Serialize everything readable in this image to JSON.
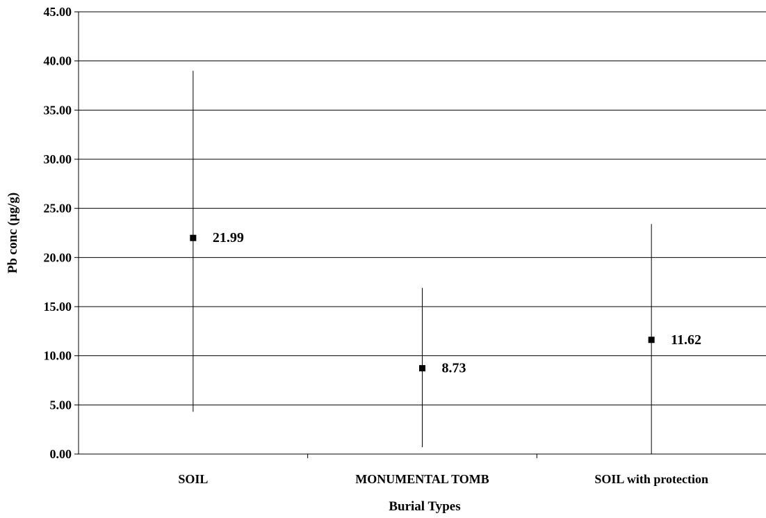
{
  "chart_data": {
    "type": "scatter",
    "title": "",
    "xlabel": "Burial Types",
    "ylabel": "Pb conc (µg/g)",
    "ylim": [
      0,
      45
    ],
    "y_ticks": [
      "0.00",
      "5.00",
      "10.00",
      "15.00",
      "20.00",
      "25.00",
      "30.00",
      "35.00",
      "40.00",
      "45.00"
    ],
    "grid": "horizontal",
    "legend": "none",
    "categories": [
      "SOIL",
      "MONUMENTAL TOMB",
      "SOIL with protection"
    ],
    "series": [
      {
        "values": [
          21.99,
          8.73,
          11.62
        ],
        "data_labels": [
          "21.99",
          "8.73",
          "11.62"
        ],
        "error_low": [
          4.3,
          0.7,
          0.0
        ],
        "error_high": [
          39.0,
          16.9,
          23.4
        ],
        "marker": "square",
        "color": "#000000"
      }
    ]
  }
}
